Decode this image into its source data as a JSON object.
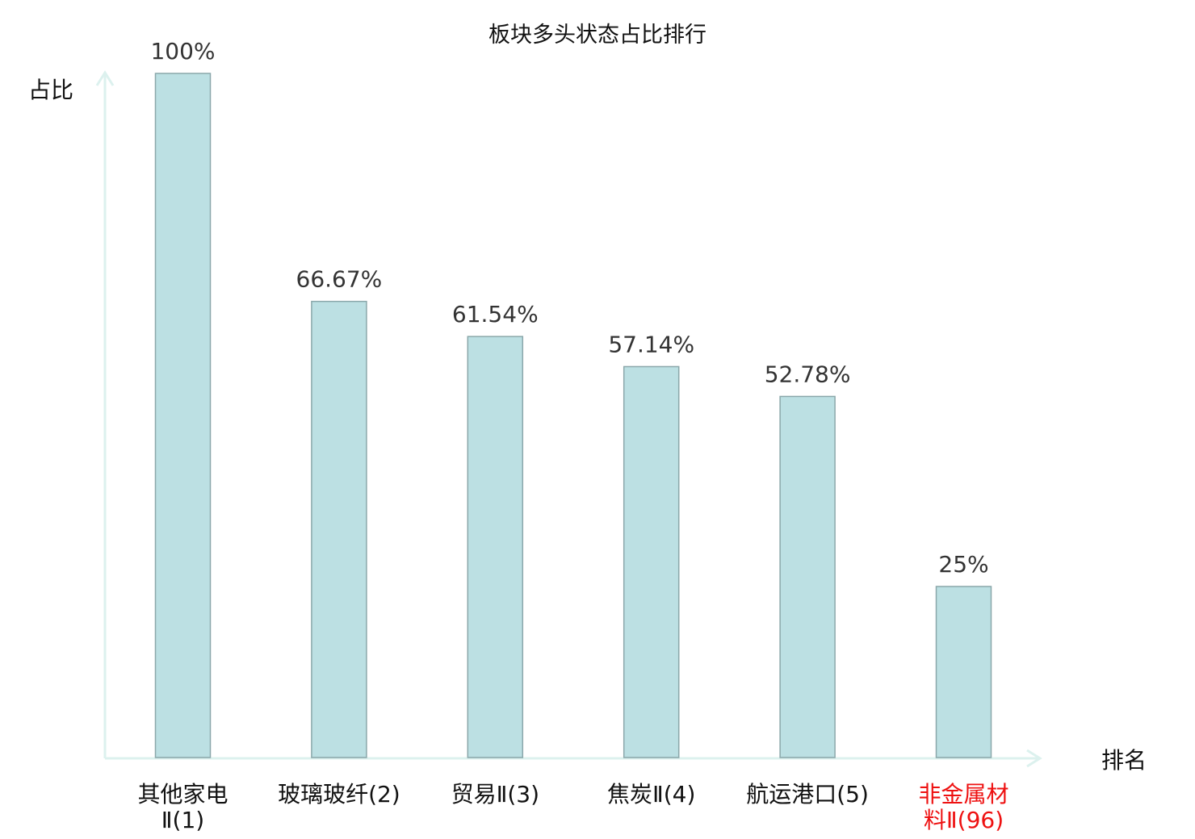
{
  "chart_data": {
    "type": "bar",
    "title": "板块多头状态占比排行",
    "ylabel": "占比",
    "xlabel": "排名",
    "categories": [
      [
        "其他家电",
        "Ⅱ(1)"
      ],
      [
        "玻璃玻纤(2)"
      ],
      [
        "贸易Ⅱ(3)"
      ],
      [
        "焦炭Ⅱ(4)"
      ],
      [
        "航运港口(5)"
      ],
      [
        "非金属材",
        "料Ⅱ(96)"
      ]
    ],
    "values": [
      100,
      66.67,
      61.54,
      57.14,
      52.78,
      25
    ],
    "value_labels": [
      "100%",
      "66.67%",
      "61.54%",
      "57.14%",
      "52.78%",
      "25%"
    ],
    "highlight_index": 5,
    "ylim": [
      0,
      100
    ],
    "grid": false,
    "colors": {
      "bar_fill": "#bce0e3",
      "bar_stroke": "#8aa7aa",
      "axis": "#dcf1ee",
      "highlight": "#ee1111",
      "text": "#111111"
    }
  }
}
